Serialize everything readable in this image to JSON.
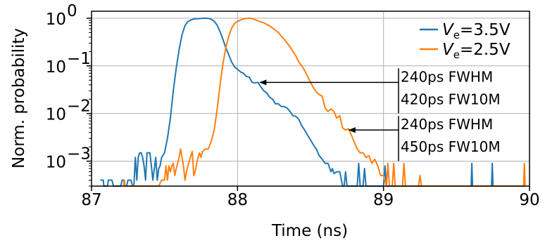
{
  "chart_data": {
    "type": "line",
    "title": "",
    "xlabel": "Time (ns)",
    "ylabel": "Norm. probability",
    "xlim": [
      87,
      90
    ],
    "ylim": [
      0.0003,
      1.4
    ],
    "yscale": "log",
    "grid": true,
    "legend_placement": "top-right",
    "x_ticks": [
      87,
      88,
      89,
      90
    ],
    "x_tick_labels": [
      "87",
      "88",
      "89",
      "90"
    ],
    "y_ticks": [
      1,
      0.1,
      0.01,
      0.001
    ],
    "y_tick_labels": [
      {
        "base": "10",
        "exp": "0"
      },
      {
        "base": "10",
        "exp": "−1"
      },
      {
        "base": "10",
        "exp": "−2"
      },
      {
        "base": "10",
        "exp": "−3"
      }
    ],
    "series": [
      {
        "name": "Ve=3.5V",
        "legend": {
          "var": "V",
          "sub": "e",
          "rest": "=3.5V"
        },
        "color": "#1f77b4",
        "points": [
          [
            87.06,
            0.0004
          ],
          [
            87.07,
            0.0004
          ],
          [
            87.08,
            0.0004
          ],
          [
            87.085,
            0.0003
          ],
          [
            87.1,
            0.0003
          ],
          [
            87.11,
            0.0003
          ],
          [
            87.115,
            0.0004
          ],
          [
            87.14,
            0.0004
          ],
          [
            87.15,
            0.0003
          ],
          [
            87.2,
            0.0003
          ],
          [
            87.21,
            0.0004
          ],
          [
            87.22,
            0.0004
          ],
          [
            87.23,
            0.0003
          ],
          [
            87.24,
            0.0003
          ],
          [
            87.25,
            0.0004
          ],
          [
            87.27,
            0.0004
          ],
          [
            87.28,
            0.0003
          ],
          [
            87.29,
            0.0003
          ],
          [
            87.3,
            0.0012
          ],
          [
            87.31,
            0.0004
          ],
          [
            87.32,
            0.0012
          ],
          [
            87.33,
            0.0015
          ],
          [
            87.34,
            0.0015
          ],
          [
            87.35,
            0.0012
          ],
          [
            87.36,
            0.0008
          ],
          [
            87.37,
            0.0004
          ],
          [
            87.38,
            0.0015
          ],
          [
            87.39,
            0.0015
          ],
          [
            87.4,
            0.0015
          ],
          [
            87.41,
            0.0008
          ],
          [
            87.42,
            0.0004
          ],
          [
            87.43,
            0.0007
          ],
          [
            87.44,
            0.0012
          ],
          [
            87.45,
            0.0004
          ],
          [
            87.46,
            0.0007
          ],
          [
            87.47,
            0.0008
          ],
          [
            87.48,
            0.0012
          ],
          [
            87.5,
            0.0015
          ],
          [
            87.52,
            0.003
          ],
          [
            87.54,
            0.008
          ],
          [
            87.56,
            0.03
          ],
          [
            87.58,
            0.09
          ],
          [
            87.6,
            0.22
          ],
          [
            87.62,
            0.45
          ],
          [
            87.64,
            0.7
          ],
          [
            87.66,
            0.85
          ],
          [
            87.68,
            0.92
          ],
          [
            87.7,
            0.96
          ],
          [
            87.72,
            0.97
          ],
          [
            87.75,
            0.99
          ],
          [
            87.78,
            1.0
          ],
          [
            87.8,
            0.99
          ],
          [
            87.82,
            0.95
          ],
          [
            87.84,
            0.86
          ],
          [
            87.86,
            0.72
          ],
          [
            87.88,
            0.52
          ],
          [
            87.9,
            0.36
          ],
          [
            87.92,
            0.24
          ],
          [
            87.94,
            0.17
          ],
          [
            87.96,
            0.12
          ],
          [
            87.98,
            0.095
          ],
          [
            88.0,
            0.085
          ],
          [
            88.02,
            0.075
          ],
          [
            88.04,
            0.07
          ],
          [
            88.06,
            0.06
          ],
          [
            88.08,
            0.058
          ],
          [
            88.1,
            0.045
          ],
          [
            88.12,
            0.044
          ],
          [
            88.14,
            0.045
          ],
          [
            88.16,
            0.036
          ],
          [
            88.18,
            0.03
          ],
          [
            88.2,
            0.027
          ],
          [
            88.22,
            0.022
          ],
          [
            88.24,
            0.02
          ],
          [
            88.26,
            0.016
          ],
          [
            88.28,
            0.016
          ],
          [
            88.3,
            0.014
          ],
          [
            88.32,
            0.014
          ],
          [
            88.34,
            0.013
          ],
          [
            88.36,
            0.011
          ],
          [
            88.38,
            0.009
          ],
          [
            88.4,
            0.0087
          ],
          [
            88.42,
            0.0075
          ],
          [
            88.44,
            0.0055
          ],
          [
            88.46,
            0.0045
          ],
          [
            88.48,
            0.0035
          ],
          [
            88.5,
            0.0028
          ],
          [
            88.52,
            0.0022
          ],
          [
            88.54,
            0.0018
          ],
          [
            88.56,
            0.0013
          ],
          [
            88.58,
            0.0011
          ],
          [
            88.6,
            0.0009
          ],
          [
            88.62,
            0.0009
          ],
          [
            88.64,
            0.0006
          ],
          [
            88.65,
            0.0007
          ],
          [
            88.66,
            0.00055
          ],
          [
            88.68,
            0.0006
          ],
          [
            88.7,
            0.0006
          ],
          [
            88.72,
            0.0003
          ],
          [
            88.73,
            0.0003
          ],
          [
            88.74,
            0.0006
          ],
          [
            88.75,
            0.0003
          ],
          [
            88.82,
            0.0003
          ],
          [
            88.83,
            0.0009
          ],
          [
            88.84,
            0.0003
          ],
          [
            88.86,
            0.0003
          ],
          [
            88.87,
            0.0007
          ],
          [
            88.88,
            0.0003
          ],
          [
            89.0,
            0.0003
          ],
          [
            89.01,
            0.0008
          ],
          [
            89.02,
            0.0003
          ],
          [
            89.6,
            0.0003
          ],
          [
            89.605,
            0.0009
          ],
          [
            89.61,
            0.0003
          ],
          [
            89.74,
            0.0003
          ],
          [
            89.745,
            0.0009
          ],
          [
            89.75,
            0.0003
          ]
        ]
      },
      {
        "name": "Ve=2.5V",
        "legend": {
          "var": "V",
          "sub": "e",
          "rest": "=2.5V"
        },
        "color": "#ff7f0e",
        "points": [
          [
            87.22,
            0.0003
          ],
          [
            87.225,
            0.0004
          ],
          [
            87.23,
            0.0003
          ],
          [
            87.46,
            0.0003
          ],
          [
            87.48,
            0.0004
          ],
          [
            87.49,
            0.0004
          ],
          [
            87.5,
            0.0004
          ],
          [
            87.51,
            0.0008
          ],
          [
            87.52,
            0.0004
          ],
          [
            87.53,
            0.0008
          ],
          [
            87.54,
            0.0006
          ],
          [
            87.55,
            0.0008
          ],
          [
            87.56,
            0.0009
          ],
          [
            87.57,
            0.0005
          ],
          [
            87.58,
            0.0007
          ],
          [
            87.59,
            0.0009
          ],
          [
            87.6,
            0.0012
          ],
          [
            87.61,
            0.0018
          ],
          [
            87.62,
            0.0012
          ],
          [
            87.63,
            0.0008
          ],
          [
            87.64,
            0.0004
          ],
          [
            87.65,
            0.0006
          ],
          [
            87.66,
            0.0008
          ],
          [
            87.68,
            0.0013
          ],
          [
            87.69,
            0.0016
          ],
          [
            87.7,
            0.0005
          ],
          [
            87.71,
            0.0006
          ],
          [
            87.72,
            0.0009
          ],
          [
            87.73,
            0.0012
          ],
          [
            87.74,
            0.0015
          ],
          [
            87.75,
            0.0012
          ],
          [
            87.76,
            0.0016
          ],
          [
            87.78,
            0.0018
          ],
          [
            87.8,
            0.0018
          ],
          [
            87.82,
            0.0026
          ],
          [
            87.84,
            0.0045
          ],
          [
            87.86,
            0.012
          ],
          [
            87.88,
            0.04
          ],
          [
            87.9,
            0.11
          ],
          [
            87.92,
            0.24
          ],
          [
            87.94,
            0.42
          ],
          [
            87.96,
            0.62
          ],
          [
            87.98,
            0.78
          ],
          [
            88.0,
            0.86
          ],
          [
            88.02,
            0.91
          ],
          [
            88.04,
            0.96
          ],
          [
            88.06,
            0.99
          ],
          [
            88.08,
            1.0
          ],
          [
            88.1,
            0.98
          ],
          [
            88.12,
            0.93
          ],
          [
            88.14,
            0.88
          ],
          [
            88.16,
            0.84
          ],
          [
            88.18,
            0.8
          ],
          [
            88.2,
            0.74
          ],
          [
            88.22,
            0.69
          ],
          [
            88.24,
            0.62
          ],
          [
            88.26,
            0.56
          ],
          [
            88.28,
            0.5
          ],
          [
            88.3,
            0.42
          ],
          [
            88.32,
            0.36
          ],
          [
            88.34,
            0.3
          ],
          [
            88.36,
            0.25
          ],
          [
            88.38,
            0.2
          ],
          [
            88.4,
            0.16
          ],
          [
            88.42,
            0.12
          ],
          [
            88.44,
            0.1
          ],
          [
            88.46,
            0.08
          ],
          [
            88.48,
            0.06
          ],
          [
            88.5,
            0.045
          ],
          [
            88.52,
            0.035
          ],
          [
            88.54,
            0.028
          ],
          [
            88.56,
            0.025
          ],
          [
            88.58,
            0.023
          ],
          [
            88.6,
            0.013
          ],
          [
            88.62,
            0.011
          ],
          [
            88.64,
            0.0125
          ],
          [
            88.66,
            0.011
          ],
          [
            88.68,
            0.008
          ],
          [
            88.7,
            0.009
          ],
          [
            88.72,
            0.005
          ],
          [
            88.74,
            0.0045
          ],
          [
            88.76,
            0.0048
          ],
          [
            88.78,
            0.0035
          ],
          [
            88.8,
            0.0025
          ],
          [
            88.82,
            0.0018
          ],
          [
            88.84,
            0.0015
          ],
          [
            88.86,
            0.0015
          ],
          [
            88.88,
            0.0012
          ],
          [
            88.9,
            0.0013
          ],
          [
            88.92,
            0.0009
          ],
          [
            88.94,
            0.0011
          ],
          [
            88.96,
            0.0008
          ],
          [
            88.98,
            0.0005
          ],
          [
            89.0,
            0.0005
          ],
          [
            89.02,
            0.0003
          ],
          [
            89.03,
            0.0009
          ],
          [
            89.04,
            0.0003
          ],
          [
            89.06,
            0.0003
          ],
          [
            89.07,
            0.0009
          ],
          [
            89.08,
            0.0003
          ],
          [
            89.13,
            0.0003
          ],
          [
            89.14,
            0.0009
          ],
          [
            89.15,
            0.0003
          ],
          [
            89.24,
            0.0003
          ],
          [
            89.25,
            0.0005
          ],
          [
            89.26,
            0.0003
          ],
          [
            89.96,
            0.0003
          ],
          [
            89.965,
            0.0009
          ],
          [
            89.97,
            0.0003
          ]
        ]
      }
    ],
    "annotations": [
      {
        "lines": [
          "240ps FWHM",
          "420ps FW10M"
        ],
        "arrow_to": [
          88.14,
          0.045
        ]
      },
      {
        "lines": [
          "240ps FWHM",
          "450ps FW10M"
        ],
        "arrow_to": [
          88.75,
          0.0045
        ]
      }
    ]
  }
}
